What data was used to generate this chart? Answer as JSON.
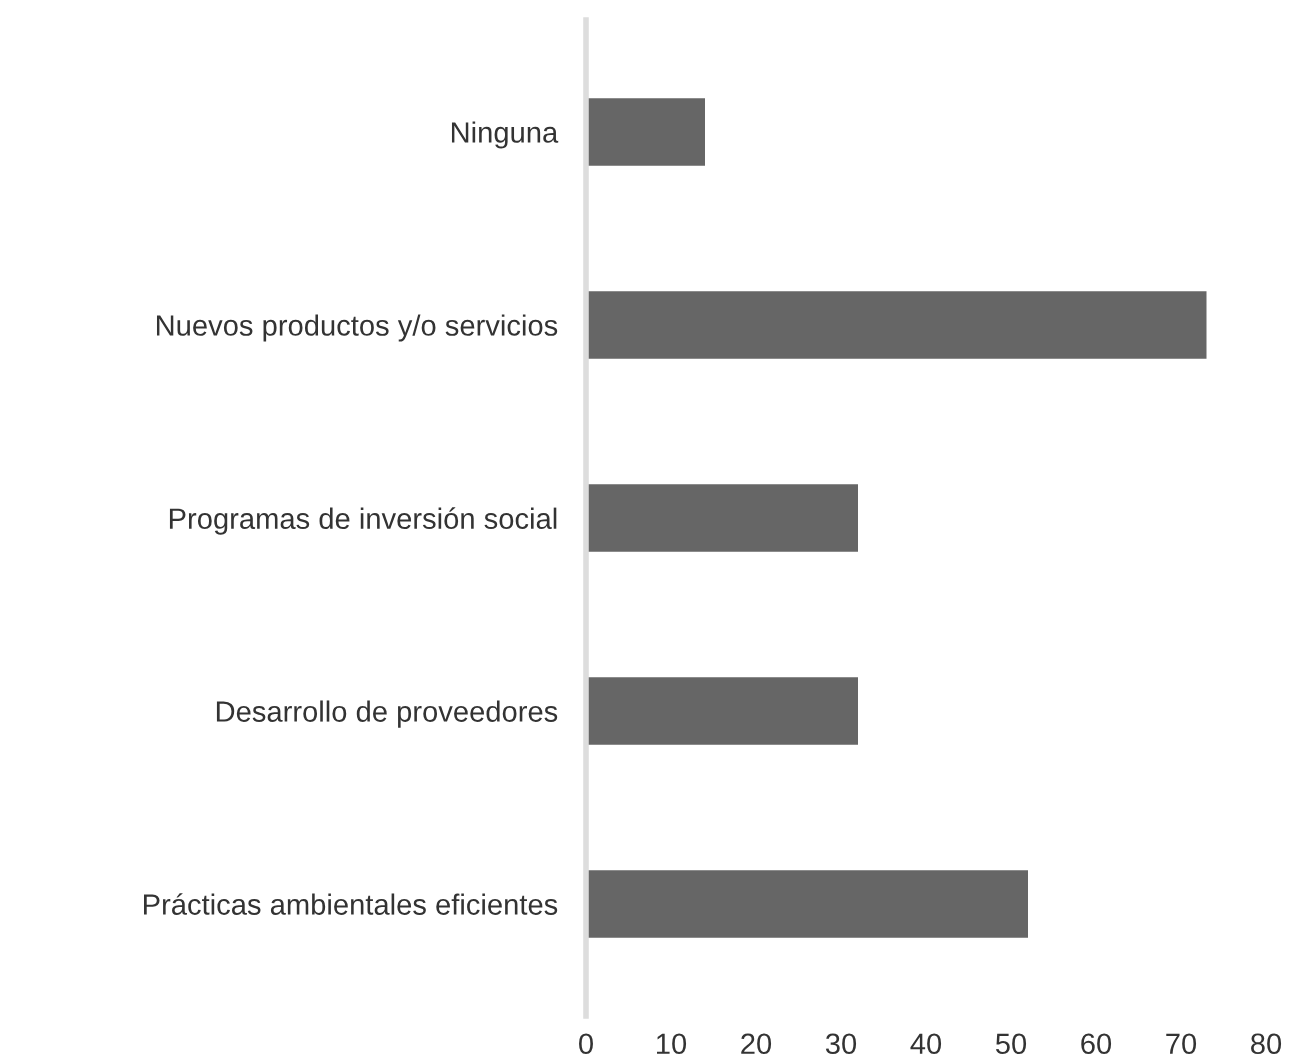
{
  "chart_data": {
    "type": "bar",
    "orientation": "horizontal",
    "categories": [
      "Ninguna",
      "Nuevos productos y/o servicios",
      "Programas de inversión social",
      "Desarrollo de proveedores",
      "Prácticas ambientales eficientes"
    ],
    "values": [
      14,
      73,
      32,
      32,
      52
    ],
    "color": "#666666",
    "xlim": [
      0,
      80
    ],
    "xticks": [
      0,
      10,
      20,
      30,
      40,
      50,
      60,
      70,
      80
    ],
    "grid": false
  }
}
